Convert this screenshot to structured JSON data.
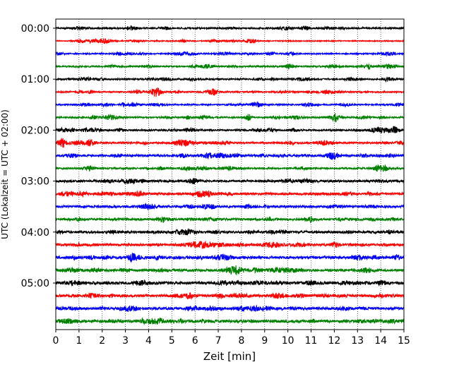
{
  "chart_data": {
    "type": "line",
    "title": "",
    "xlabel": "Zeit  [min]",
    "ylabel": "UTC (Lokalzeit = UTC + 02:00)",
    "xlim": [
      0,
      15
    ],
    "x_ticks": [
      0,
      1,
      2,
      3,
      4,
      5,
      6,
      7,
      8,
      9,
      10,
      11,
      12,
      13,
      14,
      15
    ],
    "x_tick_labels": [
      "0",
      "1",
      "2",
      "3",
      "4",
      "5",
      "6",
      "7",
      "8",
      "9",
      "10",
      "11",
      "12",
      "13",
      "14",
      "15"
    ],
    "grid": "vertical dotted",
    "trace_interval_min": 15,
    "trace_colors": [
      "#000000",
      "#ff0000",
      "#0000ff",
      "#008000"
    ],
    "hour_labels": [
      {
        "label": "00:00",
        "trace": 0
      },
      {
        "label": "01:00",
        "trace": 4
      },
      {
        "label": "02:00",
        "trace": 8
      },
      {
        "label": "03:00",
        "trace": 12
      },
      {
        "label": "04:00",
        "trace": 16
      },
      {
        "label": "05:00",
        "trace": 20
      }
    ],
    "traces": [
      {
        "start": "00:00",
        "color": "#000000",
        "amplitude": 0.9
      },
      {
        "start": "00:15",
        "color": "#ff0000",
        "amplitude": 0.6
      },
      {
        "start": "00:30",
        "color": "#0000ff",
        "amplitude": 0.7
      },
      {
        "start": "00:45",
        "color": "#008000",
        "amplitude": 0.9
      },
      {
        "start": "01:00",
        "color": "#000000",
        "amplitude": 0.9
      },
      {
        "start": "01:15",
        "color": "#ff0000",
        "amplitude": 0.8
      },
      {
        "start": "01:30",
        "color": "#0000ff",
        "amplitude": 0.8
      },
      {
        "start": "01:45",
        "color": "#008000",
        "amplitude": 0.9
      },
      {
        "start": "02:00",
        "color": "#000000",
        "amplitude": 1.0
      },
      {
        "start": "02:15",
        "color": "#ff0000",
        "amplitude": 1.0
      },
      {
        "start": "02:30",
        "color": "#0000ff",
        "amplitude": 1.2
      },
      {
        "start": "02:45",
        "color": "#008000",
        "amplitude": 1.0
      },
      {
        "start": "03:00",
        "color": "#000000",
        "amplitude": 1.3
      },
      {
        "start": "03:15",
        "color": "#ff0000",
        "amplitude": 1.4
      },
      {
        "start": "03:30",
        "color": "#0000ff",
        "amplitude": 1.3
      },
      {
        "start": "03:45",
        "color": "#008000",
        "amplitude": 1.3
      },
      {
        "start": "04:00",
        "color": "#000000",
        "amplitude": 1.4
      },
      {
        "start": "04:15",
        "color": "#ff0000",
        "amplitude": 1.5
      },
      {
        "start": "04:30",
        "color": "#0000ff",
        "amplitude": 1.6
      },
      {
        "start": "04:45",
        "color": "#008000",
        "amplitude": 1.5
      },
      {
        "start": "05:00",
        "color": "#000000",
        "amplitude": 1.6
      },
      {
        "start": "05:15",
        "color": "#ff0000",
        "amplitude": 1.5
      },
      {
        "start": "05:30",
        "color": "#0000ff",
        "amplitude": 1.5
      },
      {
        "start": "05:45",
        "color": "#008000",
        "amplitude": 1.6
      }
    ],
    "events": [
      {
        "trace": 9,
        "x": 0.3,
        "amplitude": 5.0
      },
      {
        "trace": 8,
        "x": 14.6,
        "amplitude": 2.5
      },
      {
        "trace": 18,
        "x": 14.7,
        "amplitude": 2.5
      },
      {
        "trace": 13,
        "x": 6.6,
        "amplitude": 2.0
      },
      {
        "trace": 9,
        "x": 1.5,
        "amplitude": 2.0
      },
      {
        "trace": 5,
        "x": 1.5,
        "amplitude": 1.8
      }
    ]
  }
}
